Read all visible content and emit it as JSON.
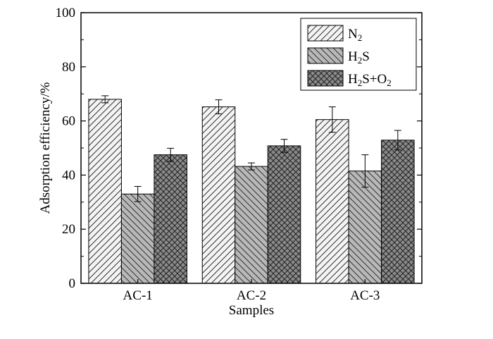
{
  "chart_data": {
    "type": "bar",
    "xlabel": "Samples",
    "ylabel": "Adsorption efficiency/%",
    "ylim": [
      0,
      100
    ],
    "yticks": [
      0,
      20,
      40,
      60,
      80,
      100
    ],
    "grid": false,
    "legend_position": "top-right",
    "categories": [
      "AC-1",
      "AC-2",
      "AC-3"
    ],
    "series": [
      {
        "name": "N2",
        "values": [
          68.0,
          65.2,
          60.5
        ],
        "errors": [
          1.3,
          2.6,
          4.7
        ],
        "color": "#f4f4f4",
        "pattern": "forward-diagonal"
      },
      {
        "name": "H2S",
        "values": [
          33.0,
          43.2,
          41.5
        ],
        "errors": [
          2.8,
          1.3,
          6.0
        ],
        "color": "#b8b8b8",
        "pattern": "backward-diagonal"
      },
      {
        "name": "H2S+O2",
        "values": [
          47.5,
          50.8,
          52.9
        ],
        "errors": [
          2.4,
          2.4,
          3.6
        ],
        "color": "#8a8a8a",
        "pattern": "crosshatch"
      }
    ],
    "legend": [
      {
        "base": "N",
        "sub": "2",
        "tail": "",
        "sub2": ""
      },
      {
        "base": "H",
        "sub": "2",
        "tail": "S",
        "sub2": ""
      },
      {
        "base": "H",
        "sub": "2",
        "tail": "S+O",
        "sub2": "2"
      }
    ]
  }
}
